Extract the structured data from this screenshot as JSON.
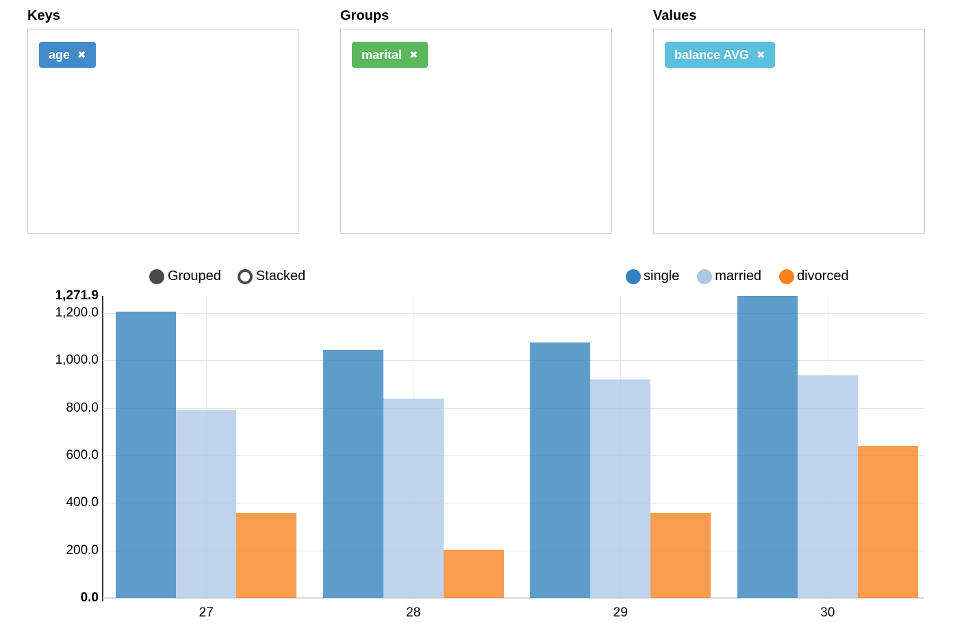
{
  "panels": [
    {
      "title": "Keys",
      "tags": [
        {
          "label": "age",
          "remove_icon": "✖",
          "color": "#428bca"
        }
      ]
    },
    {
      "title": "Groups",
      "tags": [
        {
          "label": "marital",
          "remove_icon": "✖",
          "color": "#5cb85c"
        }
      ]
    },
    {
      "title": "Values",
      "tags": [
        {
          "label": "balance AVG",
          "remove_icon": "✖",
          "color": "#5bc0de"
        }
      ]
    }
  ],
  "controls": {
    "options": [
      {
        "label": "Grouped",
        "selected": true
      },
      {
        "label": "Stacked",
        "selected": false
      }
    ],
    "radio_color": "#4a4a4a"
  },
  "chart_data": {
    "type": "bar",
    "mode": "grouped",
    "title": "",
    "xlabel": "",
    "ylabel": "",
    "categories": [
      "27",
      "28",
      "29",
      "30"
    ],
    "series": [
      {
        "name": "single",
        "color": "#3182bd",
        "values": [
          1205,
          1045,
          1077,
          1271.9
        ]
      },
      {
        "name": "married",
        "color": "#aec7e8",
        "values": [
          790,
          838,
          921,
          938
        ]
      },
      {
        "name": "divorced",
        "color": "#f8821e",
        "values": [
          357,
          203,
          357,
          640
        ]
      }
    ],
    "ylim": [
      0,
      1271.9
    ],
    "y_gridlines": [
      200,
      400,
      600,
      800,
      1000,
      1200
    ],
    "y_axis_labels": [
      {
        "text": "1,271.9",
        "value": 1271.9,
        "bold": true
      },
      {
        "text": "1,200.0",
        "value": 1200,
        "bold": false
      },
      {
        "text": "1,000.0",
        "value": 1000,
        "bold": false
      },
      {
        "text": "800.0",
        "value": 800,
        "bold": false
      },
      {
        "text": "600.0",
        "value": 600,
        "bold": false
      },
      {
        "text": "400.0",
        "value": 400,
        "bold": false
      },
      {
        "text": "200.0",
        "value": 200,
        "bold": false
      },
      {
        "text": "0.0",
        "value": 0,
        "bold": true
      }
    ],
    "legend_position": "top-right",
    "grid": true
  }
}
